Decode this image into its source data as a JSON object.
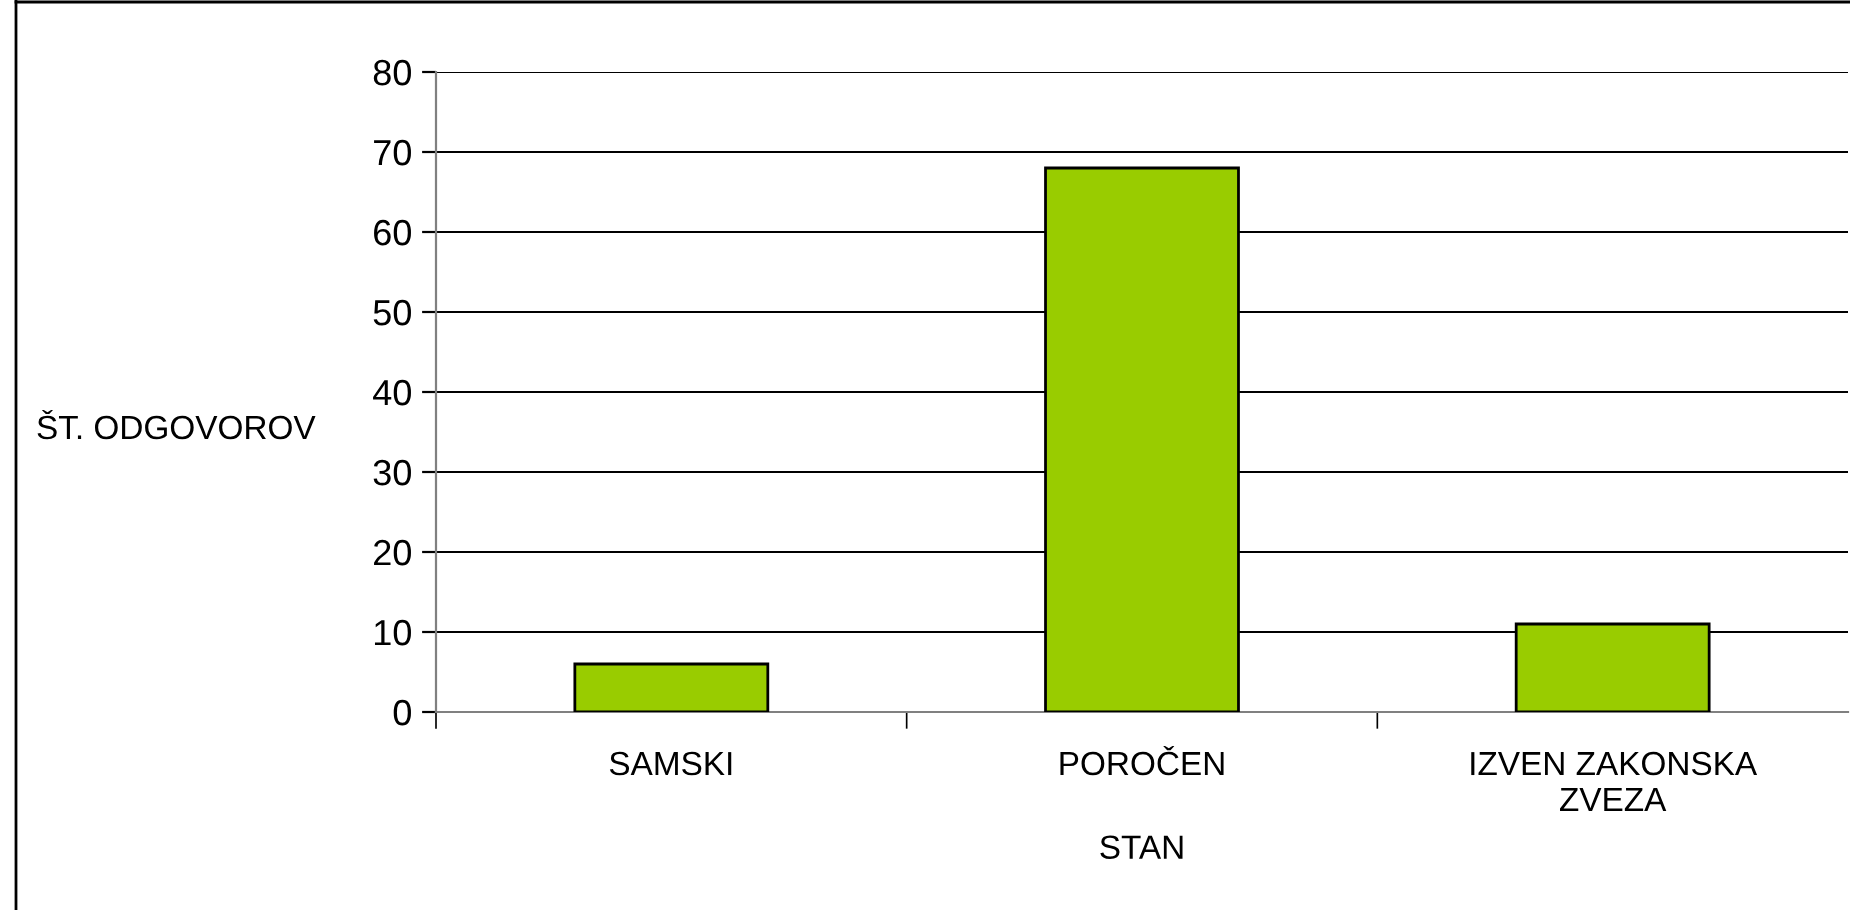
{
  "chart_data": {
    "type": "bar",
    "categories": [
      "SAMSKI",
      "POROČEN",
      "IZVEN ZAKONSKA\nZVEZA"
    ],
    "values": [
      6,
      68,
      11
    ],
    "color": "#99cc00",
    "xlabel": "STAN",
    "ylabel": "ŠT. ODGOVOROV",
    "ylim": [
      0,
      80
    ],
    "yticks": [
      0,
      10,
      20,
      30,
      40,
      50,
      60,
      70,
      80
    ],
    "grid": "y"
  }
}
